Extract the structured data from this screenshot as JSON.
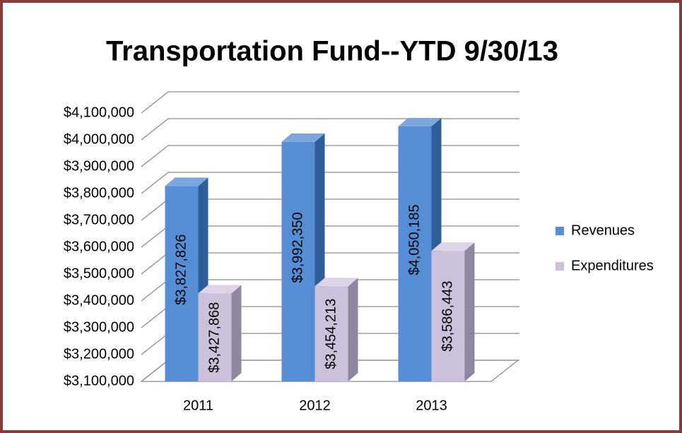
{
  "chart_data": {
    "type": "bar3d",
    "title": "Transportation Fund--YTD 9/30/13",
    "categories": [
      "2011",
      "2012",
      "2013"
    ],
    "series": [
      {
        "name": "Revenues",
        "color": "#558ed5",
        "values": [
          3827826,
          3992350,
          4050185
        ],
        "value_labels": [
          "$3,827,826",
          "$3,992,350",
          "$4,050,185"
        ]
      },
      {
        "name": "Expenditures",
        "color": "#ccc1da",
        "values": [
          3427868,
          3454213,
          3586443
        ],
        "value_labels": [
          "$3,427,868",
          "$3,454,213",
          "$3,586,443"
        ]
      }
    ],
    "ylim": [
      3100000,
      4100000
    ],
    "yticks": [
      {
        "value": 3100000,
        "label": "$3,100,000"
      },
      {
        "value": 3200000,
        "label": "$3,200,000"
      },
      {
        "value": 3300000,
        "label": "$3,300,000"
      },
      {
        "value": 3400000,
        "label": "$3,400,000"
      },
      {
        "value": 3500000,
        "label": "$3,500,000"
      },
      {
        "value": 3600000,
        "label": "$3,600,000"
      },
      {
        "value": 3700000,
        "label": "$3,700,000"
      },
      {
        "value": 3800000,
        "label": "$3,800,000"
      },
      {
        "value": 3900000,
        "label": "$3,900,000"
      },
      {
        "value": 4000000,
        "label": "$4,000,000"
      },
      {
        "value": 4100000,
        "label": "$4,100,000"
      }
    ],
    "grid": true,
    "legend": "right"
  }
}
